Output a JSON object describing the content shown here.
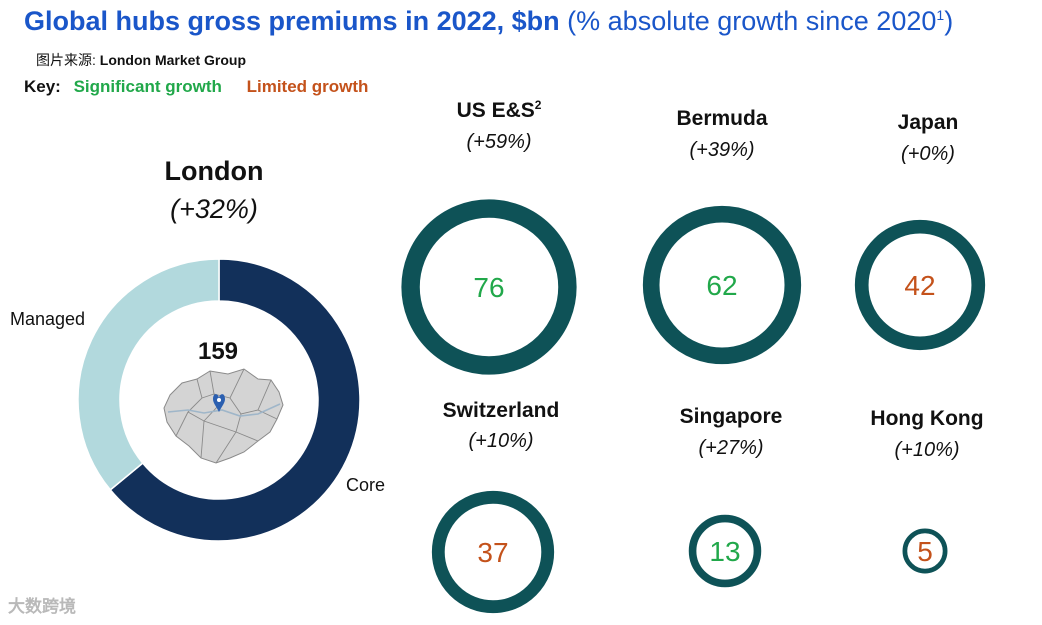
{
  "title": {
    "main": "Global hubs gross premiums in 2022, $bn",
    "sub": "(% absolute growth since 2020",
    "sub_sup": "1",
    "sub_close": ")"
  },
  "source": {
    "prefix": "图片来源:",
    "name": "London Market Group"
  },
  "key": {
    "label": "Key:",
    "significant": "Significant growth",
    "limited": "Limited growth"
  },
  "colors": {
    "significant": "#21a84a",
    "limited": "#c4521b",
    "ring": "#0e5257",
    "core": "#12305a",
    "managed": "#b2d9dd"
  },
  "chart_data": {
    "type": "donut",
    "title": "Global hubs gross premiums in 2022, $bn",
    "unit": "$bn",
    "london": {
      "name": "London",
      "growth": "(+32%)",
      "total": 159,
      "segments": [
        {
          "name": "Core",
          "share": 0.64
        },
        {
          "name": "Managed",
          "share": 0.36
        }
      ]
    },
    "hubs": [
      {
        "name": "US E&S",
        "sup": "2",
        "growth": "(+59%)",
        "value": 76,
        "category": "significant"
      },
      {
        "name": "Bermuda",
        "sup": "",
        "growth": "(+39%)",
        "value": 62,
        "category": "significant"
      },
      {
        "name": "Japan",
        "sup": "",
        "growth": "(+0%)",
        "value": 42,
        "category": "limited"
      },
      {
        "name": "Switzerland",
        "sup": "",
        "growth": "(+10%)",
        "value": 37,
        "category": "limited"
      },
      {
        "name": "Singapore",
        "sup": "",
        "growth": "(+27%)",
        "value": 13,
        "category": "significant"
      },
      {
        "name": "Hong Kong",
        "sup": "",
        "growth": "(+10%)",
        "value": 5,
        "category": "limited"
      }
    ]
  },
  "watermark": "大数跨境"
}
